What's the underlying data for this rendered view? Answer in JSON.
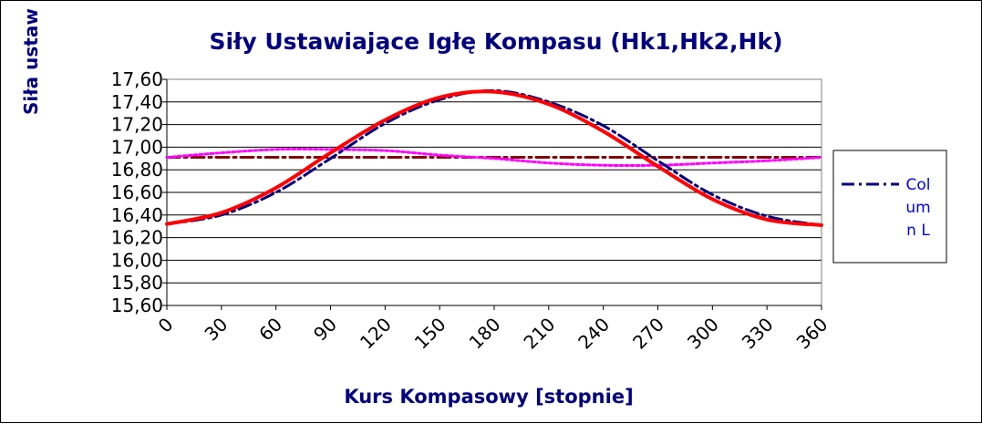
{
  "chart_data": {
    "type": "line",
    "title": "Siły Ustawiające Igłę Kompasu (Hk1,Hk2,Hk)",
    "xlabel": "Kurs Kompasowy  [stopnie]",
    "ylabel": "Siła ustaw",
    "xlim": [
      0,
      360
    ],
    "ylim": [
      15.6,
      17.6
    ],
    "x_ticks": [
      "0",
      "30",
      "60",
      "90",
      "120",
      "150",
      "180",
      "210",
      "240",
      "270",
      "300",
      "330",
      "360"
    ],
    "y_ticks": [
      "17,60",
      "17,40",
      "17,20",
      "17,00",
      "16,80",
      "16,60",
      "16,40",
      "16,20",
      "16,00",
      "15,80",
      "15,60"
    ],
    "grid": "horizontal",
    "legend_position": "right",
    "legend": [
      {
        "label": "Column L",
        "color": "#000080",
        "style": "dash-dot"
      }
    ],
    "series": [
      {
        "color": "#800000",
        "style": "dash-dot",
        "x": [
          0,
          360
        ],
        "y": [
          16.91,
          16.91
        ]
      },
      {
        "color": "#FF00FF",
        "style": "dotted",
        "x": [
          0,
          30,
          60,
          90,
          120,
          150,
          180,
          210,
          240,
          270,
          300,
          330,
          360
        ],
        "y": [
          16.91,
          16.95,
          16.98,
          16.98,
          16.97,
          16.93,
          16.9,
          16.86,
          16.84,
          16.84,
          16.86,
          16.88,
          16.91
        ]
      },
      {
        "name": "Column L",
        "color": "#000080",
        "style": "dash-dot",
        "x": [
          0,
          30,
          60,
          90,
          120,
          150,
          180,
          210,
          240,
          270,
          300,
          330,
          360
        ],
        "y": [
          16.32,
          16.4,
          16.6,
          16.9,
          17.21,
          17.42,
          17.5,
          17.4,
          17.19,
          16.88,
          16.58,
          16.39,
          16.31
        ]
      },
      {
        "color": "#FF0000",
        "style": "solid",
        "x": [
          0,
          30,
          60,
          90,
          120,
          150,
          180,
          210,
          240,
          270,
          300,
          330,
          360
        ],
        "y": [
          16.32,
          16.42,
          16.64,
          16.95,
          17.24,
          17.44,
          17.49,
          17.38,
          17.14,
          16.83,
          16.54,
          16.36,
          16.31
        ]
      }
    ]
  }
}
